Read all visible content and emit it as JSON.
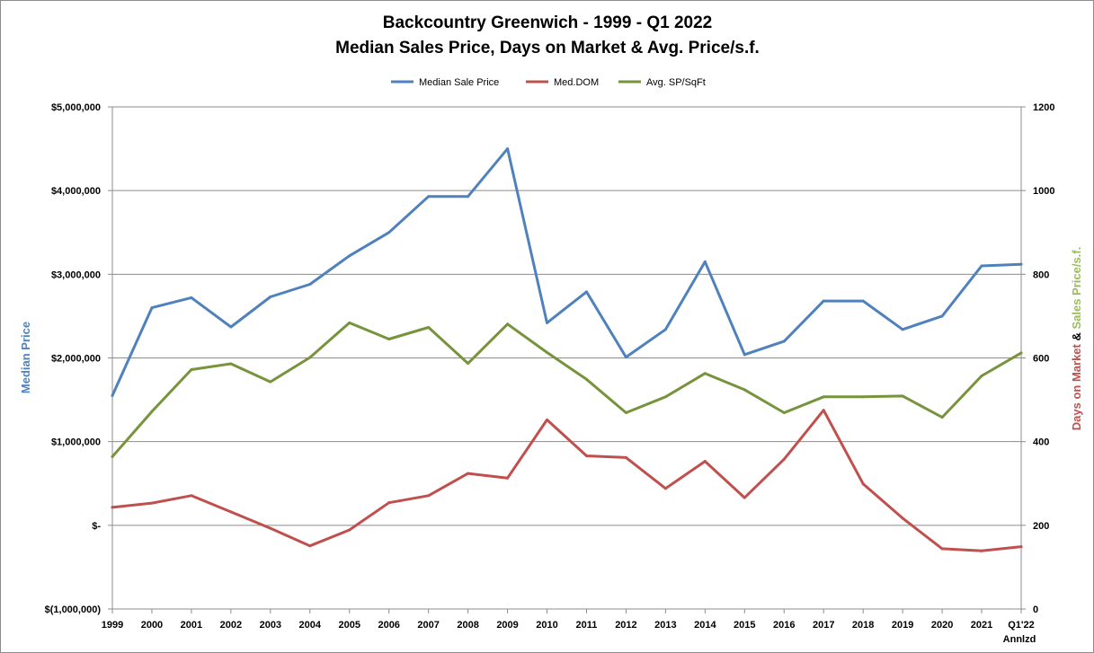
{
  "chart_data": {
    "type": "line",
    "title": [
      "Backcountry Greenwich - 1999 - Q1 2022",
      "Median Sales Price, Days on Market & Avg. Price/s.f."
    ],
    "categories": [
      "1999",
      "2000",
      "2001",
      "2002",
      "2003",
      "2004",
      "2005",
      "2006",
      "2007",
      "2008",
      "2009",
      "2010",
      "2011",
      "2012",
      "2013",
      "2014",
      "2015",
      "2016",
      "2017",
      "2018",
      "2019",
      "2020",
      "2021",
      "Q1'22"
    ],
    "category_sublabels": {
      "Q1'22": "Annlzd"
    },
    "y_left": {
      "label": "Median Price",
      "label_color": "#4f81bd",
      "range": [
        -1000000,
        5000000
      ],
      "ticks": [
        -1000000,
        0,
        1000000,
        2000000,
        3000000,
        4000000,
        5000000
      ],
      "tick_labels": [
        "$(1,000,000)",
        "$-",
        "$1,000,000",
        "$2,000,000",
        "$3,000,000",
        "$4,000,000",
        "$5,000,000"
      ]
    },
    "y_right": {
      "label_parts": [
        {
          "text": "Days on Market ",
          "color": "#c0504d"
        },
        {
          "text": "& ",
          "color": "#000000"
        },
        {
          "text": "Sales Price/s.f.",
          "color": "#9bbb59"
        }
      ],
      "range": [
        0,
        1200
      ],
      "ticks": [
        0,
        200,
        400,
        600,
        800,
        1000,
        1200
      ],
      "tick_labels": [
        "0",
        "200",
        "400",
        "600",
        "800",
        "1000",
        "1200"
      ]
    },
    "grid": true,
    "legend_position": "top",
    "series": [
      {
        "name": "Median Sale Price",
        "color": "#4f81bd",
        "axis": "left",
        "values": [
          1550000,
          2600000,
          2720000,
          2370000,
          2730000,
          2880000,
          3220000,
          3500000,
          3930000,
          3930000,
          4500000,
          2420000,
          2790000,
          2010000,
          2340000,
          3150000,
          2040000,
          2200000,
          2680000,
          2680000,
          2340000,
          2500000,
          3100000,
          3120000
        ]
      },
      {
        "name": "Med.DOM",
        "color": "#c0504d",
        "axis": "right",
        "values": [
          243,
          253,
          271,
          232,
          193,
          151,
          189,
          254,
          271,
          324,
          313,
          452,
          366,
          362,
          288,
          353,
          266,
          358,
          475,
          299,
          217,
          144,
          139,
          149
        ]
      },
      {
        "name": "Avg. SP/SqFt",
        "color": "#77933c",
        "axis": "right",
        "values": [
          364,
          472,
          572,
          586,
          543,
          601,
          684,
          645,
          673,
          587,
          681,
          613,
          549,
          469,
          507,
          563,
          524,
          469,
          507,
          507,
          509,
          458,
          557,
          612
        ]
      }
    ]
  }
}
